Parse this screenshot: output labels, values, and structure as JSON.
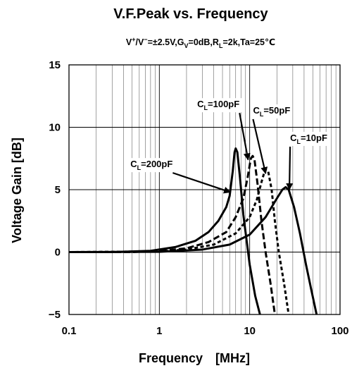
{
  "chart_data": {
    "type": "line",
    "title": "V.F.Peak vs. Frequency",
    "subtitle": {
      "base": "V",
      "sup1": "+",
      "mid1": "/V",
      "sup2": "−",
      "mid2": "=±2.5V,G",
      "sub1": "V",
      "mid3": "=0dB,R",
      "sub2": "L",
      "tail": "=2k,Ta=25℃"
    },
    "xlabel": "Frequency　[MHz]",
    "ylabel": "Voltage Gain [dB]",
    "x_scale": "log",
    "xlim": [
      0.1,
      100
    ],
    "ylim": [
      -5,
      15
    ],
    "x_ticks": [
      {
        "value": 0.1,
        "label": "0.1"
      },
      {
        "value": 1,
        "label": "1"
      },
      {
        "value": 10,
        "label": "10"
      },
      {
        "value": 100,
        "label": "100"
      }
    ],
    "y_ticks": [
      {
        "value": 15,
        "label": "15"
      },
      {
        "value": 10,
        "label": "10"
      },
      {
        "value": 5,
        "label": "5"
      },
      {
        "value": 0,
        "label": "0"
      },
      {
        "value": -5,
        "label": "−5"
      }
    ],
    "grid": true,
    "series": [
      {
        "name": "CL=200pF",
        "dash": "solid",
        "points": [
          [
            0.1,
            0
          ],
          [
            0.3,
            0
          ],
          [
            0.8,
            0.1
          ],
          [
            1.5,
            0.4
          ],
          [
            2.5,
            0.9
          ],
          [
            3.5,
            1.6
          ],
          [
            4.5,
            2.5
          ],
          [
            5.5,
            3.6
          ],
          [
            6.0,
            4.5
          ],
          [
            6.5,
            6.5
          ],
          [
            6.8,
            8.0
          ],
          [
            7.0,
            8.3
          ],
          [
            7.3,
            8.0
          ],
          [
            7.8,
            6.0
          ],
          [
            8.5,
            3.0
          ],
          [
            10,
            -1
          ],
          [
            11.5,
            -3.5
          ],
          [
            13,
            -5
          ]
        ]
      },
      {
        "name": "CL=100pF",
        "dash": "dashed",
        "points": [
          [
            0.1,
            0
          ],
          [
            0.5,
            0
          ],
          [
            1,
            0.1
          ],
          [
            2,
            0.3
          ],
          [
            3.5,
            0.8
          ],
          [
            5.5,
            1.6
          ],
          [
            7,
            2.8
          ],
          [
            8.5,
            4.3
          ],
          [
            9.5,
            6.0
          ],
          [
            10.3,
            7.5
          ],
          [
            10.8,
            7.7
          ],
          [
            11.3,
            7.4
          ],
          [
            12.2,
            5.5
          ],
          [
            13.5,
            2.5
          ],
          [
            15,
            0
          ],
          [
            17,
            -2.5
          ],
          [
            19,
            -5
          ]
        ]
      },
      {
        "name": "CL=50pF",
        "dash": "dotted",
        "points": [
          [
            0.1,
            0
          ],
          [
            1,
            0.05
          ],
          [
            2,
            0.2
          ],
          [
            4,
            0.6
          ],
          [
            7,
            1.5
          ],
          [
            10,
            2.8
          ],
          [
            12,
            4.2
          ],
          [
            13.5,
            5.6
          ],
          [
            14.8,
            6.6
          ],
          [
            16,
            6.5
          ],
          [
            17.5,
            5.0
          ],
          [
            19,
            2.5
          ],
          [
            21,
            0
          ],
          [
            24,
            -2.5
          ],
          [
            27,
            -5
          ]
        ]
      },
      {
        "name": "CL=10pF",
        "dash": "solid",
        "points": [
          [
            0.1,
            0
          ],
          [
            1,
            0.02
          ],
          [
            3,
            0.2
          ],
          [
            6,
            0.6
          ],
          [
            10,
            1.4
          ],
          [
            15,
            2.8
          ],
          [
            20,
            4.3
          ],
          [
            23,
            5.0
          ],
          [
            25,
            5.2
          ],
          [
            27,
            5.0
          ],
          [
            31,
            3.6
          ],
          [
            36,
            1.5
          ],
          [
            42,
            -1
          ],
          [
            48,
            -3
          ],
          [
            55,
            -5
          ]
        ]
      }
    ],
    "annotations": [
      {
        "series": "CL=200pF",
        "text_base": "C",
        "text_sub": "L",
        "text_tail": "=200pF",
        "at": [
          0.82,
          6.8
        ],
        "target": [
          6.1,
          4.8
        ]
      },
      {
        "series": "CL=100pF",
        "text_base": "C",
        "text_sub": "L",
        "text_tail": "=100pF",
        "at": [
          4.5,
          11.6
        ],
        "target": [
          9.6,
          7.4
        ]
      },
      {
        "series": "CL=50pF",
        "text_base": "C",
        "text_sub": "L",
        "text_tail": "=50pF",
        "at": [
          17.5,
          11.1
        ],
        "target": [
          15.0,
          6.3
        ]
      },
      {
        "series": "CL=10pF",
        "text_base": "C",
        "text_sub": "L",
        "text_tail": "=10pF",
        "at": [
          45,
          8.9
        ],
        "target": [
          27.5,
          5.0
        ]
      }
    ]
  }
}
